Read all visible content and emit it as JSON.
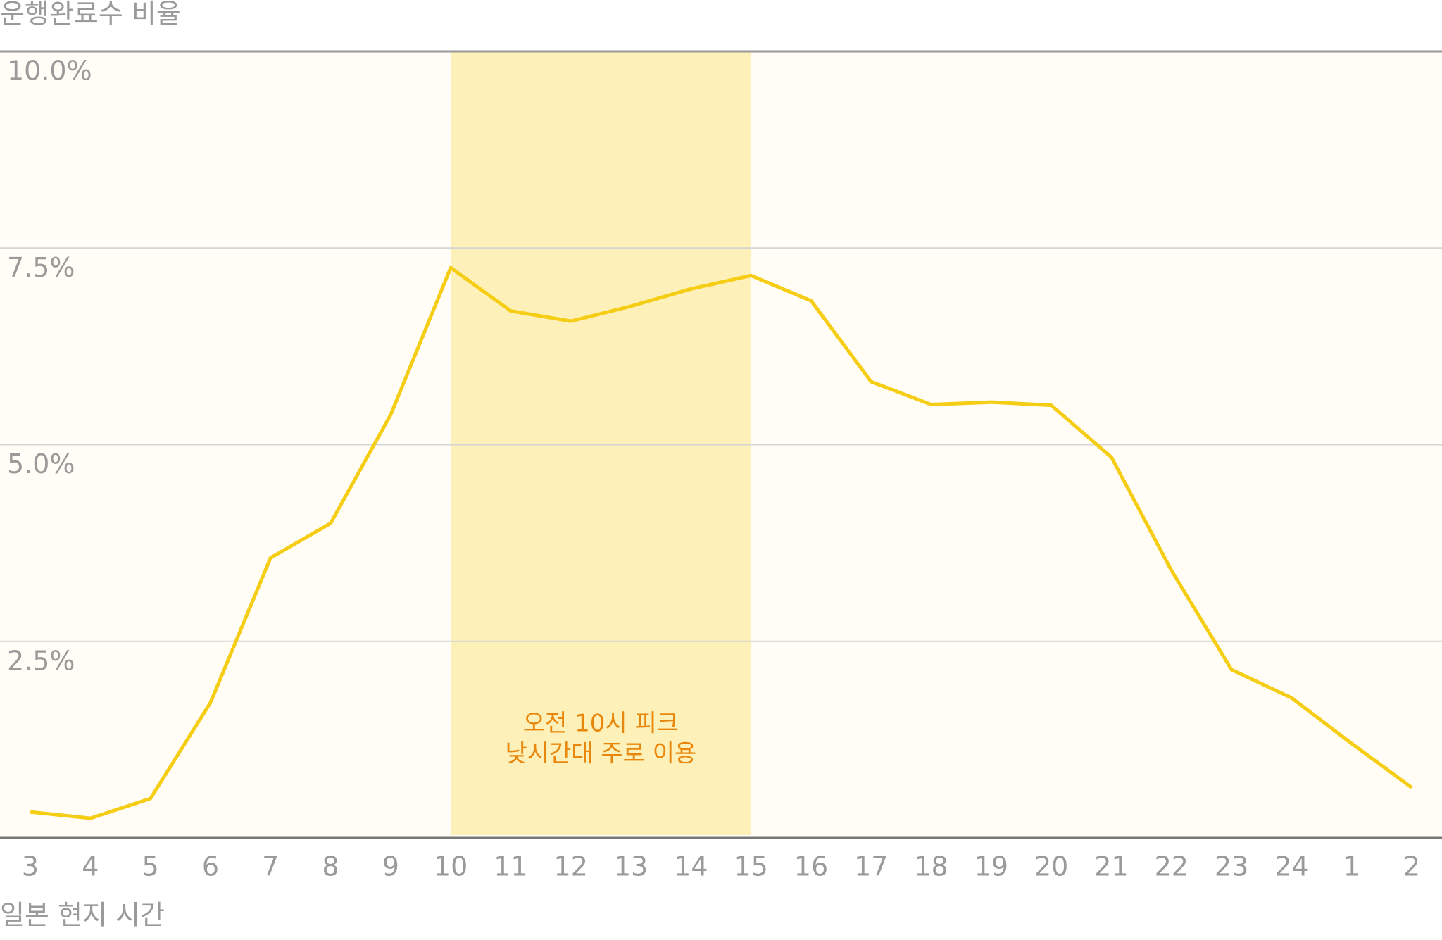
{
  "chart_data": {
    "type": "line",
    "title": "운행완료수 비율",
    "x_label": "일본 현지 시간",
    "categories": [
      "3",
      "4",
      "5",
      "6",
      "7",
      "8",
      "9",
      "10",
      "11",
      "12",
      "13",
      "14",
      "15",
      "16",
      "17",
      "18",
      "19",
      "20",
      "21",
      "22",
      "23",
      "24",
      "1",
      "2"
    ],
    "series": [
      {
        "name": "운행완료수 비율",
        "color": "#f5cd14",
        "values": [
          0.33,
          0.25,
          0.5,
          1.72,
          3.56,
          4.0,
          5.38,
          7.25,
          6.7,
          6.57,
          6.76,
          6.98,
          7.15,
          6.83,
          5.8,
          5.51,
          5.54,
          5.5,
          4.84,
          3.4,
          2.14,
          1.78,
          1.2,
          0.64
        ]
      }
    ],
    "ylim": [
      0,
      10
    ],
    "yticks": [
      {
        "value": 2.5,
        "label": "2.5%"
      },
      {
        "value": 5,
        "label": "5.0%"
      },
      {
        "value": 7.5,
        "label": "7.5%"
      },
      {
        "value": 10,
        "label": "10.0%"
      }
    ],
    "grid": true,
    "highlight": {
      "from": "10",
      "to": "15",
      "color": "#fdf0b8",
      "text": [
        "오전 10시 피크",
        "낮시간대 주로 이용"
      ],
      "text_color": "#e8870b"
    }
  }
}
